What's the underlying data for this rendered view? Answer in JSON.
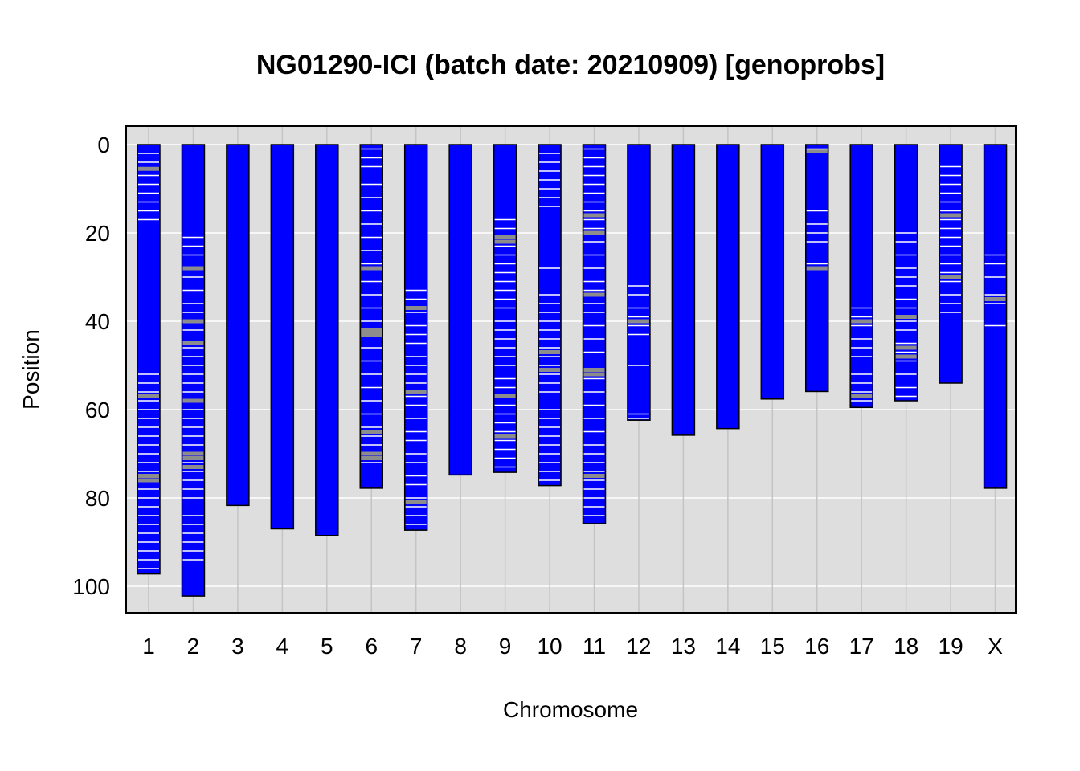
{
  "chart_data": {
    "type": "bar",
    "title": "NG01290-ICI (batch date: 20210909) [genoprobs]",
    "xlabel": "Chromosome",
    "ylabel": "Position",
    "ylim": [
      0,
      105
    ],
    "y_reversed": true,
    "grid": true,
    "background": "#dedede",
    "bar_color": "#0000ff",
    "marker_colors": {
      "white": "#ffffff",
      "gray": "#8c8c8c"
    },
    "yticks": [
      "0",
      "20",
      "40",
      "60",
      "80",
      "100"
    ],
    "categories": [
      "1",
      "2",
      "3",
      "4",
      "5",
      "6",
      "7",
      "8",
      "9",
      "10",
      "11",
      "12",
      "13",
      "14",
      "15",
      "16",
      "17",
      "18",
      "19",
      "X"
    ],
    "values": [
      97.2,
      102.2,
      81.7,
      87.0,
      88.5,
      77.8,
      87.3,
      74.8,
      74.2,
      77.2,
      85.8,
      62.4,
      65.8,
      64.3,
      57.6,
      55.9,
      59.5,
      58.0,
      54.0,
      77.8
    ],
    "markers": [
      {
        "chr": "1",
        "white": [
          2,
          4,
          7,
          9,
          11,
          13,
          15,
          17,
          52,
          54,
          56,
          58,
          60,
          62,
          64,
          66,
          68,
          70,
          72,
          74,
          78,
          80,
          82,
          84,
          86,
          88,
          90,
          92,
          94,
          96
        ],
        "gray": [
          5.5,
          57,
          75,
          76
        ]
      },
      {
        "chr": "2",
        "white": [
          21,
          23,
          25,
          30,
          33,
          36,
          38,
          42,
          46,
          48,
          50,
          52,
          54,
          56,
          60,
          62,
          64,
          66,
          68,
          72,
          74,
          76,
          78,
          80,
          84,
          86,
          88,
          90,
          92,
          94
        ],
        "gray": [
          28,
          40,
          45,
          58,
          70,
          71,
          73
        ]
      },
      {
        "chr": "3",
        "white": [],
        "gray": []
      },
      {
        "chr": "4",
        "white": [],
        "gray": []
      },
      {
        "chr": "5",
        "white": [],
        "gray": []
      },
      {
        "chr": "6",
        "white": [
          1,
          3,
          5,
          9,
          12,
          15,
          18,
          21,
          24,
          27,
          31,
          34,
          37,
          40,
          46,
          49,
          52,
          55,
          58,
          61,
          64,
          66,
          68,
          72
        ],
        "gray": [
          28,
          42,
          43,
          65,
          70,
          71
        ]
      },
      {
        "chr": "7",
        "white": [
          33,
          35,
          38,
          41,
          43,
          45,
          48,
          50,
          52,
          54,
          57,
          59,
          62,
          65,
          67,
          70,
          72,
          75,
          77,
          80,
          82,
          84,
          86
        ],
        "gray": [
          37,
          56,
          81
        ]
      },
      {
        "chr": "8",
        "white": [],
        "gray": []
      },
      {
        "chr": "9",
        "white": [
          17,
          19,
          23,
          25,
          27,
          29,
          31,
          33,
          35,
          37,
          40,
          42,
          44,
          46,
          48,
          50,
          53,
          55,
          59,
          61,
          63,
          65,
          67,
          69,
          71,
          73
        ],
        "gray": [
          21,
          22,
          57,
          66
        ]
      },
      {
        "chr": "10",
        "white": [
          2,
          4,
          6,
          8,
          10,
          12,
          14,
          28,
          34,
          36,
          38,
          40,
          42,
          44,
          46,
          48,
          50,
          52,
          54,
          56,
          60,
          62,
          64,
          66,
          68,
          70,
          72,
          74,
          76
        ],
        "gray": [
          47,
          51
        ]
      },
      {
        "chr": "11",
        "white": [
          1,
          3,
          5,
          7,
          9,
          11,
          13,
          15,
          17,
          19,
          22,
          25,
          28,
          31,
          33,
          36,
          38,
          41,
          44,
          47,
          53,
          56,
          59,
          62,
          65,
          68,
          70,
          72,
          74,
          76,
          78,
          80,
          82,
          84
        ],
        "gray": [
          16,
          20,
          34,
          51,
          52,
          75
        ]
      },
      {
        "chr": "12",
        "white": [
          32,
          34,
          37,
          39,
          41,
          43,
          50,
          61,
          62
        ],
        "gray": [
          40
        ]
      },
      {
        "chr": "13",
        "white": [],
        "gray": []
      },
      {
        "chr": "14",
        "white": [],
        "gray": []
      },
      {
        "chr": "15",
        "white": [],
        "gray": []
      },
      {
        "chr": "16",
        "white": [
          1,
          15,
          18,
          20,
          22,
          27
        ],
        "gray": [
          1.5,
          28
        ]
      },
      {
        "chr": "17",
        "white": [
          37,
          39,
          41,
          44,
          46,
          48,
          52,
          54,
          56,
          58
        ],
        "gray": [
          40,
          57
        ]
      },
      {
        "chr": "18",
        "white": [
          20,
          22,
          25,
          28,
          30,
          32,
          35,
          37,
          40,
          42,
          45,
          47,
          49,
          52,
          55,
          57
        ],
        "gray": [
          39,
          46,
          48
        ]
      },
      {
        "chr": "19",
        "white": [
          5,
          7,
          9,
          11,
          13,
          15,
          17,
          19,
          21,
          23,
          25,
          27,
          29,
          31,
          34,
          36,
          38
        ],
        "gray": [
          16,
          30
        ]
      },
      {
        "chr": "X",
        "white": [
          25,
          27,
          30,
          34,
          36,
          41
        ],
        "gray": [
          35
        ]
      }
    ]
  }
}
